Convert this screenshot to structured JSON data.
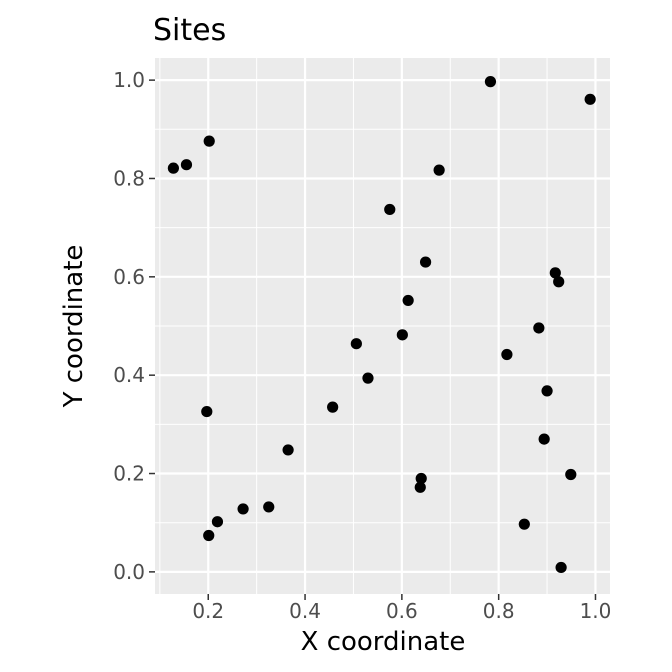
{
  "chart_data": {
    "type": "scatter",
    "title": "Sites",
    "xlabel": "X coordinate",
    "ylabel": "Y coordinate",
    "xlim": [
      0.09,
      1.03
    ],
    "ylim": [
      -0.045,
      1.045
    ],
    "x_ticks": [
      0.2,
      0.4,
      0.6,
      0.8,
      1.0
    ],
    "y_ticks": [
      0.0,
      0.2,
      0.4,
      0.6,
      0.8,
      1.0
    ],
    "x_tick_labels": [
      "0.2",
      "0.4",
      "0.6",
      "0.8",
      "1.0"
    ],
    "y_tick_labels": [
      "0.0",
      "0.2",
      "0.4",
      "0.6",
      "0.8",
      "1.0"
    ],
    "grid": true,
    "colors": {
      "panel": "#ebebeb",
      "grid": "#ffffff",
      "point": "#000000",
      "tick": "#4d4d4d"
    },
    "points": [
      {
        "x": 0.128,
        "y": 0.821
      },
      {
        "x": 0.155,
        "y": 0.828
      },
      {
        "x": 0.202,
        "y": 0.876
      },
      {
        "x": 0.197,
        "y": 0.326
      },
      {
        "x": 0.201,
        "y": 0.074
      },
      {
        "x": 0.219,
        "y": 0.102
      },
      {
        "x": 0.272,
        "y": 0.128
      },
      {
        "x": 0.325,
        "y": 0.132
      },
      {
        "x": 0.365,
        "y": 0.248
      },
      {
        "x": 0.457,
        "y": 0.335
      },
      {
        "x": 0.506,
        "y": 0.464
      },
      {
        "x": 0.53,
        "y": 0.394
      },
      {
        "x": 0.575,
        "y": 0.737
      },
      {
        "x": 0.601,
        "y": 0.482
      },
      {
        "x": 0.613,
        "y": 0.552
      },
      {
        "x": 0.649,
        "y": 0.63
      },
      {
        "x": 0.677,
        "y": 0.817
      },
      {
        "x": 0.64,
        "y": 0.19
      },
      {
        "x": 0.638,
        "y": 0.172
      },
      {
        "x": 0.783,
        "y": 0.997
      },
      {
        "x": 0.817,
        "y": 0.442
      },
      {
        "x": 0.853,
        "y": 0.097
      },
      {
        "x": 0.883,
        "y": 0.496
      },
      {
        "x": 0.894,
        "y": 0.27
      },
      {
        "x": 0.9,
        "y": 0.368
      },
      {
        "x": 0.917,
        "y": 0.608
      },
      {
        "x": 0.924,
        "y": 0.59
      },
      {
        "x": 0.949,
        "y": 0.198
      },
      {
        "x": 0.929,
        "y": 0.009
      },
      {
        "x": 0.989,
        "y": 0.961
      }
    ]
  }
}
